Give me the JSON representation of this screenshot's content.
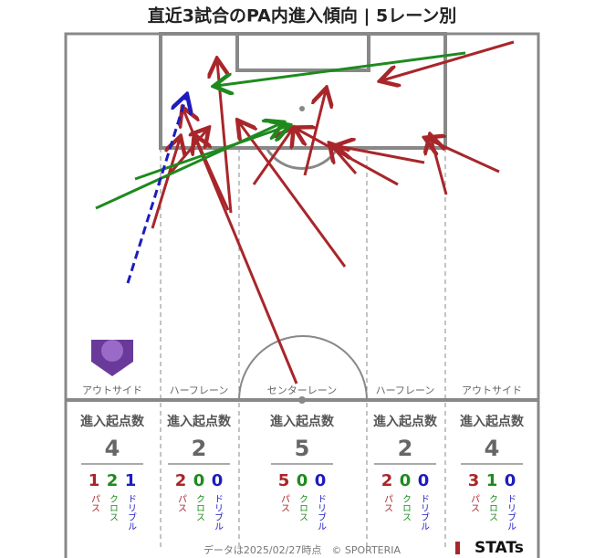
{
  "header": {
    "title": "直近3試合のPA内進入傾向 | 5レーン別"
  },
  "lanes": [
    {
      "label": "アウトサイド",
      "heading": "進入起点数",
      "total": 4,
      "stats": [
        {
          "value": 1,
          "label": "パス"
        },
        {
          "value": 2,
          "label": "クロス"
        },
        {
          "value": 1,
          "label": "ドリブル"
        }
      ]
    },
    {
      "label": "ハーフレーン",
      "heading": "進入起点数",
      "total": 2,
      "stats": [
        {
          "value": 2,
          "label": "パス"
        },
        {
          "value": 0,
          "label": "クロス"
        },
        {
          "value": 0,
          "label": "ドリブル"
        }
      ]
    },
    {
      "label": "センターレーン",
      "heading": "進入起点数",
      "total": 5,
      "stats": [
        {
          "value": 5,
          "label": "パス"
        },
        {
          "value": 0,
          "label": "クロス"
        },
        {
          "value": 0,
          "label": "ドリブル"
        }
      ]
    },
    {
      "label": "ハーフレーン",
      "heading": "進入起点数",
      "total": 2,
      "stats": [
        {
          "value": 2,
          "label": "パス"
        },
        {
          "value": 0,
          "label": "クロス"
        },
        {
          "value": 0,
          "label": "ドリブル"
        }
      ]
    },
    {
      "label": "アウトサイド",
      "heading": "進入起点数",
      "total": 4,
      "stats": [
        {
          "value": 3,
          "label": "パス"
        },
        {
          "value": 1,
          "label": "クロス"
        },
        {
          "value": 0,
          "label": "ドリブル"
        }
      ]
    }
  ],
  "footer": {
    "note": "データは2025/02/27時点　© SPORTERIA",
    "brand": "STATs"
  }
}
